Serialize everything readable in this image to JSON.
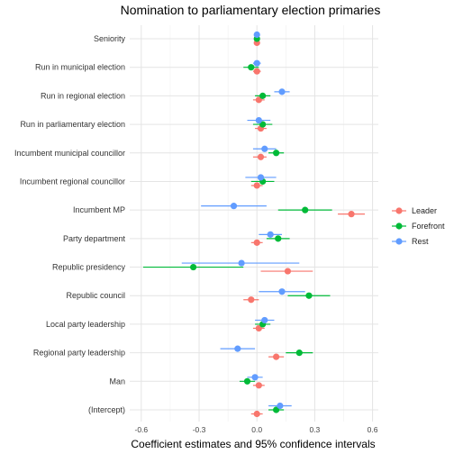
{
  "chart_data": {
    "type": "scatter",
    "title": "Nomination to parliamentary election primaries",
    "xlabel": "Coefficient estimates and 95% confidence intervals",
    "ylabel": "",
    "xlim": [
      -0.66,
      0.63
    ],
    "xticks": [
      -0.6,
      -0.3,
      0.0,
      0.3,
      0.6
    ],
    "xtick_labels": [
      "-0.6",
      "-0.3",
      "0.0",
      "0.3",
      "0.6"
    ],
    "grid": true,
    "legend_position": "right",
    "categories": [
      "Seniority",
      "Run in municipal election",
      "Run in regional election",
      "Run in parliamentary election",
      "Incumbent municipal councillor",
      "Incumbent regional councillor",
      "Incumbent MP",
      "Party department",
      "Republic presidency",
      "Republic council",
      "Local party leadership",
      "Regional party leadership",
      "Man",
      "(Intercept)"
    ],
    "series": [
      {
        "name": "Leader",
        "color": "#F8766D",
        "estimate": [
          0.0,
          0.0,
          0.01,
          0.02,
          0.02,
          0.0,
          0.49,
          0.0,
          0.16,
          -0.03,
          0.01,
          0.1,
          0.01,
          0.0
        ],
        "lower": [
          -0.01,
          -0.02,
          -0.02,
          -0.01,
          -0.02,
          -0.03,
          0.42,
          -0.03,
          0.02,
          -0.07,
          -0.02,
          0.06,
          -0.02,
          -0.03
        ],
        "upper": [
          0.01,
          0.02,
          0.04,
          0.05,
          0.05,
          0.03,
          0.56,
          0.03,
          0.29,
          0.01,
          0.04,
          0.14,
          0.04,
          0.03
        ]
      },
      {
        "name": "Forefront",
        "color": "#00BA38",
        "estimate": [
          0.0,
          -0.03,
          0.03,
          0.03,
          0.1,
          0.03,
          0.25,
          0.11,
          -0.33,
          0.27,
          0.03,
          0.22,
          -0.05,
          0.1
        ],
        "lower": [
          -0.01,
          -0.07,
          -0.01,
          -0.02,
          0.06,
          -0.03,
          0.11,
          0.05,
          -0.59,
          0.16,
          -0.01,
          0.15,
          -0.09,
          0.06
        ],
        "upper": [
          0.01,
          0.01,
          0.07,
          0.08,
          0.14,
          0.09,
          0.39,
          0.17,
          -0.07,
          0.38,
          0.07,
          0.29,
          -0.01,
          0.14
        ]
      },
      {
        "name": "Rest",
        "color": "#619CFF",
        "estimate": [
          0.0,
          0.0,
          0.13,
          0.01,
          0.04,
          0.02,
          -0.12,
          0.07,
          -0.08,
          0.13,
          0.04,
          -0.1,
          -0.01,
          0.12
        ],
        "lower": [
          -0.01,
          -0.02,
          0.09,
          -0.05,
          -0.02,
          -0.06,
          -0.29,
          0.01,
          -0.39,
          0.01,
          -0.01,
          -0.19,
          -0.05,
          0.06
        ],
        "upper": [
          0.01,
          0.02,
          0.17,
          0.07,
          0.1,
          0.1,
          0.05,
          0.13,
          0.22,
          0.25,
          0.09,
          -0.01,
          0.03,
          0.18
        ]
      }
    ]
  }
}
